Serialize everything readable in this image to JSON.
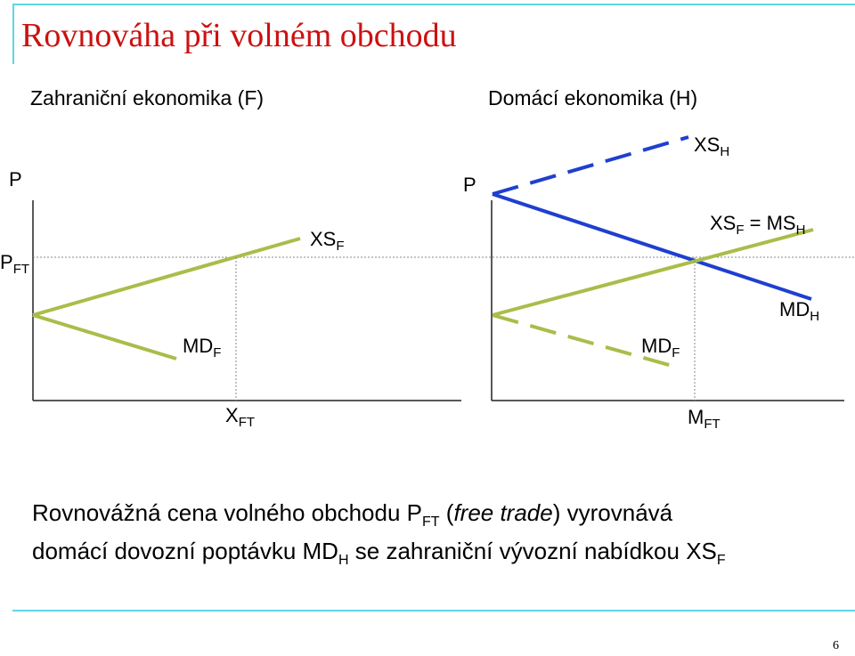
{
  "title": "Rovnováha při volném obchodu",
  "panels": {
    "foreign": {
      "heading": "Zahraniční ekonomika (F)",
      "y_axis": "P",
      "price_label": "P",
      "price_sub": "FT",
      "supply_label": "XS",
      "supply_sub": "F",
      "demand_label": "MD",
      "demand_sub": "F",
      "qty_label": "X",
      "qty_sub": "FT"
    },
    "home": {
      "heading": "Domácí ekonomika (H)",
      "y_axis": "P",
      "xs_label": "XS",
      "xs_sub": "H",
      "xsf_label": "XS",
      "xsf_sub": "F",
      "eq_sign": " = ",
      "ms_label": "MS",
      "ms_sub": "H",
      "mdh_label": "MD",
      "mdh_sub": "H",
      "mdf_label": "MD",
      "mdf_sub": "F",
      "qty_label": "M",
      "qty_sub": "FT"
    }
  },
  "caption": {
    "line1_a": "Rovnovážná cena volného obchodu P",
    "line1_sub": "FT",
    "line1_b": " (",
    "line1_italic": "free trade",
    "line1_c": ") vyrovnává",
    "line2_a": "domácí dovozní poptávku MD",
    "line2_sub1": "H",
    "line2_b": " se zahraniční vývozní nabídkou XS",
    "line2_sub2": "F"
  },
  "colors": {
    "green": "#a9bd4a",
    "blue": "#1f3fcf",
    "title": "#cc1111",
    "accent": "#5fd7e6"
  },
  "page_number": "6"
}
